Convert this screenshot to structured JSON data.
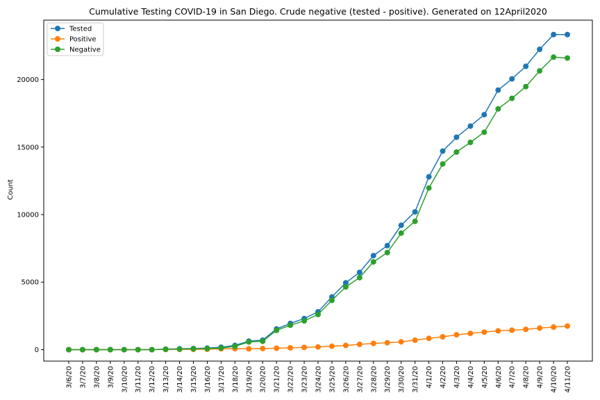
{
  "chart_data": {
    "type": "line",
    "title": "Cumulative Testing COVID-19 in San Diego. Crude negative (tested - positive). Generated on 12April2020",
    "xlabel": "",
    "ylabel": "Count",
    "ylim": [
      -850,
      24400
    ],
    "yticks": [
      0,
      5000,
      10000,
      15000,
      20000
    ],
    "grid": false,
    "legend_position": "top-left",
    "categories": [
      "3/6/20",
      "3/7/20",
      "3/8/20",
      "3/9/20",
      "3/10/20",
      "3/11/20",
      "3/12/20",
      "3/13/20",
      "3/14/20",
      "3/15/20",
      "3/16/20",
      "3/17/20",
      "3/18/20",
      "3/19/20",
      "3/20/20",
      "3/21/20",
      "3/22/20",
      "3/23/20",
      "3/24/20",
      "3/25/20",
      "3/26/20",
      "3/27/20",
      "3/28/20",
      "3/29/20",
      "3/30/20",
      "3/31/20",
      "4/1/20",
      "4/2/20",
      "4/3/20",
      "4/4/20",
      "4/5/20",
      "4/6/20",
      "4/7/20",
      "4/8/20",
      "4/9/20",
      "4/10/20",
      "4/11/20"
    ],
    "series": [
      {
        "name": "Tested",
        "color": "#1f77b4",
        "values": [
          0,
          0,
          0,
          0,
          0,
          0,
          0,
          40,
          60,
          80,
          110,
          180,
          310,
          630,
          700,
          1530,
          1940,
          2300,
          2800,
          3900,
          4950,
          5720,
          6960,
          7700,
          9210,
          10200,
          12800,
          14700,
          15730,
          16550,
          17400,
          19220,
          20050,
          20980,
          22240,
          23330,
          23330
        ]
      },
      {
        "name": "Positive",
        "color": "#ff7f0e",
        "values": [
          0,
          0,
          0,
          0,
          0,
          0,
          0,
          10,
          20,
          20,
          30,
          60,
          70,
          60,
          80,
          100,
          130,
          170,
          200,
          250,
          310,
          390,
          460,
          510,
          580,
          700,
          830,
          950,
          1100,
          1200,
          1300,
          1390,
          1440,
          1500,
          1600,
          1670,
          1740
        ]
      },
      {
        "name": "Negative",
        "color": "#2ca02c",
        "values": [
          0,
          0,
          0,
          0,
          0,
          0,
          0,
          30,
          40,
          60,
          80,
          120,
          240,
          570,
          620,
          1430,
          1810,
          2130,
          2600,
          3650,
          4640,
          5330,
          6500,
          7190,
          8630,
          9500,
          11970,
          13750,
          14630,
          15350,
          16100,
          17830,
          18610,
          19480,
          20640,
          21660,
          21590
        ]
      }
    ]
  }
}
